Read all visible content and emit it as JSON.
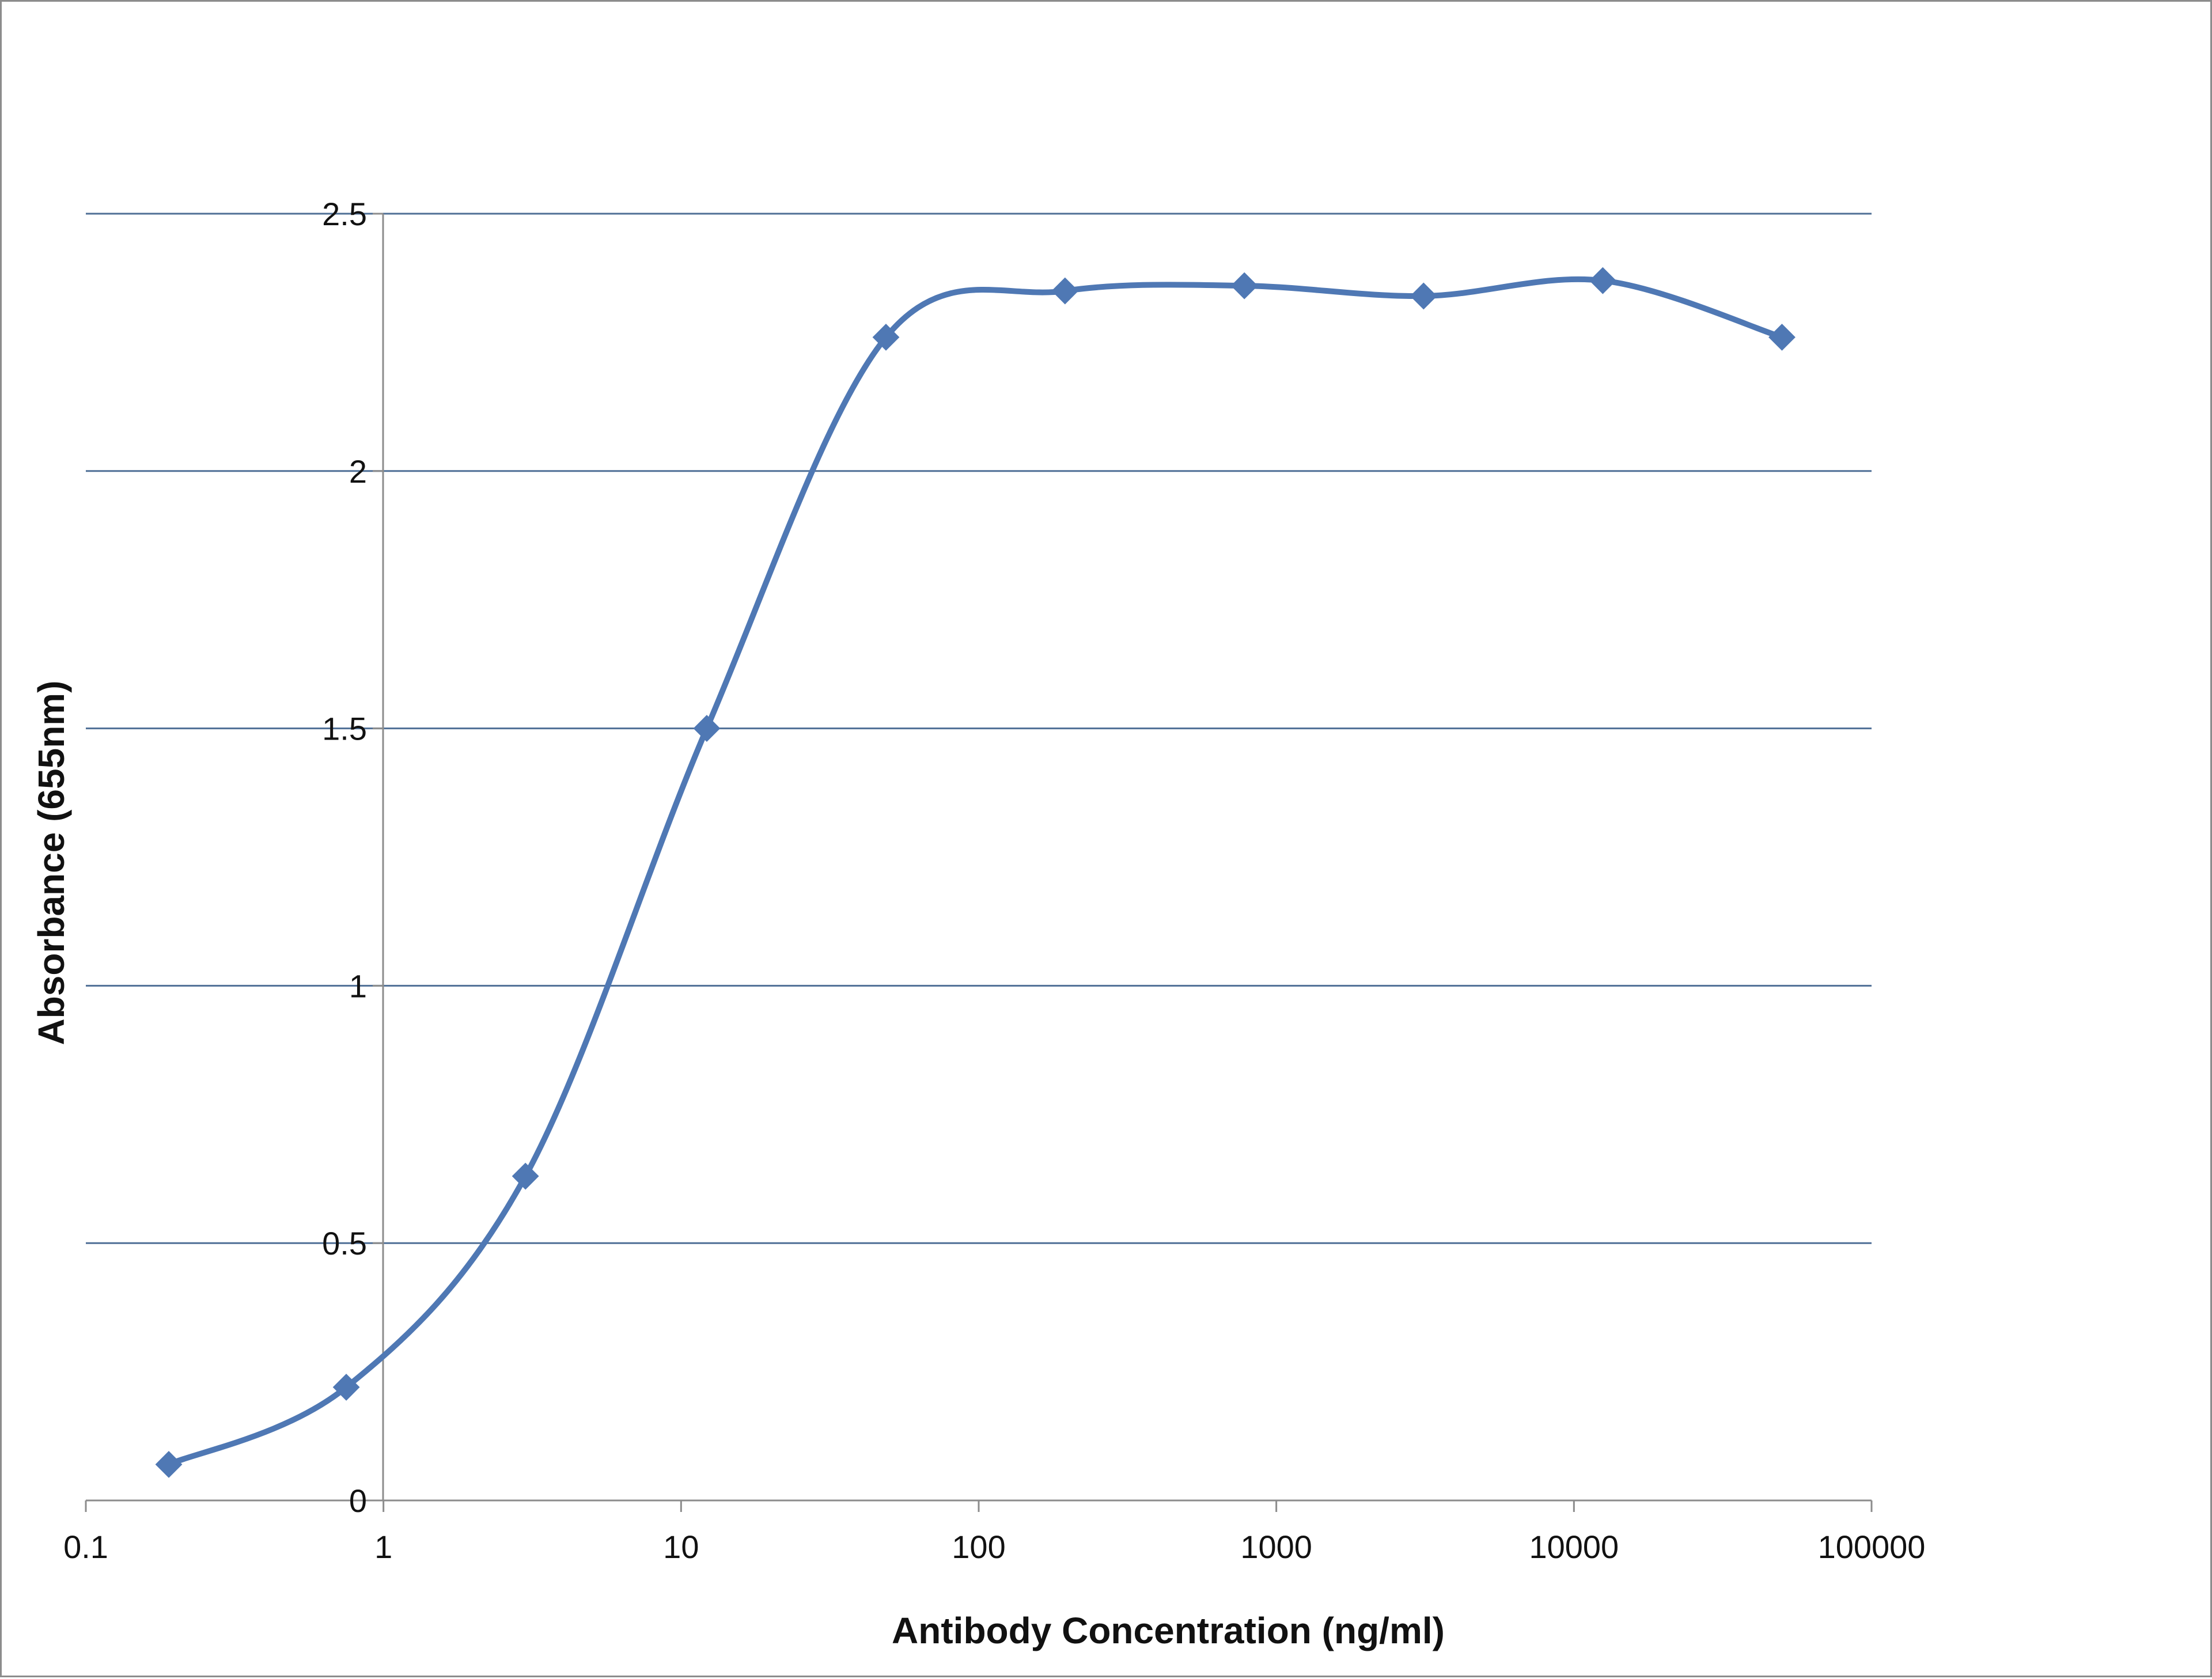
{
  "chart_data": {
    "type": "line",
    "xlabel": "Antibody Concentration (ng/ml)",
    "ylabel": "Absorbance (655nm)",
    "x_scale": "log",
    "xlim": [
      0.1,
      100000
    ],
    "ylim": [
      0,
      2.5
    ],
    "x_ticks": [
      "0.1",
      "1",
      "10",
      "100",
      "1000",
      "10000",
      "100000"
    ],
    "y_ticks": [
      "0",
      "0.5",
      "1",
      "1.5",
      "2",
      "2.5"
    ],
    "grid": "horizontal",
    "legend": "none",
    "series": [
      {
        "color": "#4f78b4",
        "marker": "diamond",
        "smooth": true,
        "x": [
          0.19,
          0.75,
          3.0,
          12.2,
          48.8,
          195,
          781,
          3125,
          12500,
          50000
        ],
        "y": [
          0.07,
          0.22,
          0.63,
          1.5,
          2.26,
          2.35,
          2.36,
          2.34,
          2.37,
          2.26
        ]
      }
    ]
  }
}
